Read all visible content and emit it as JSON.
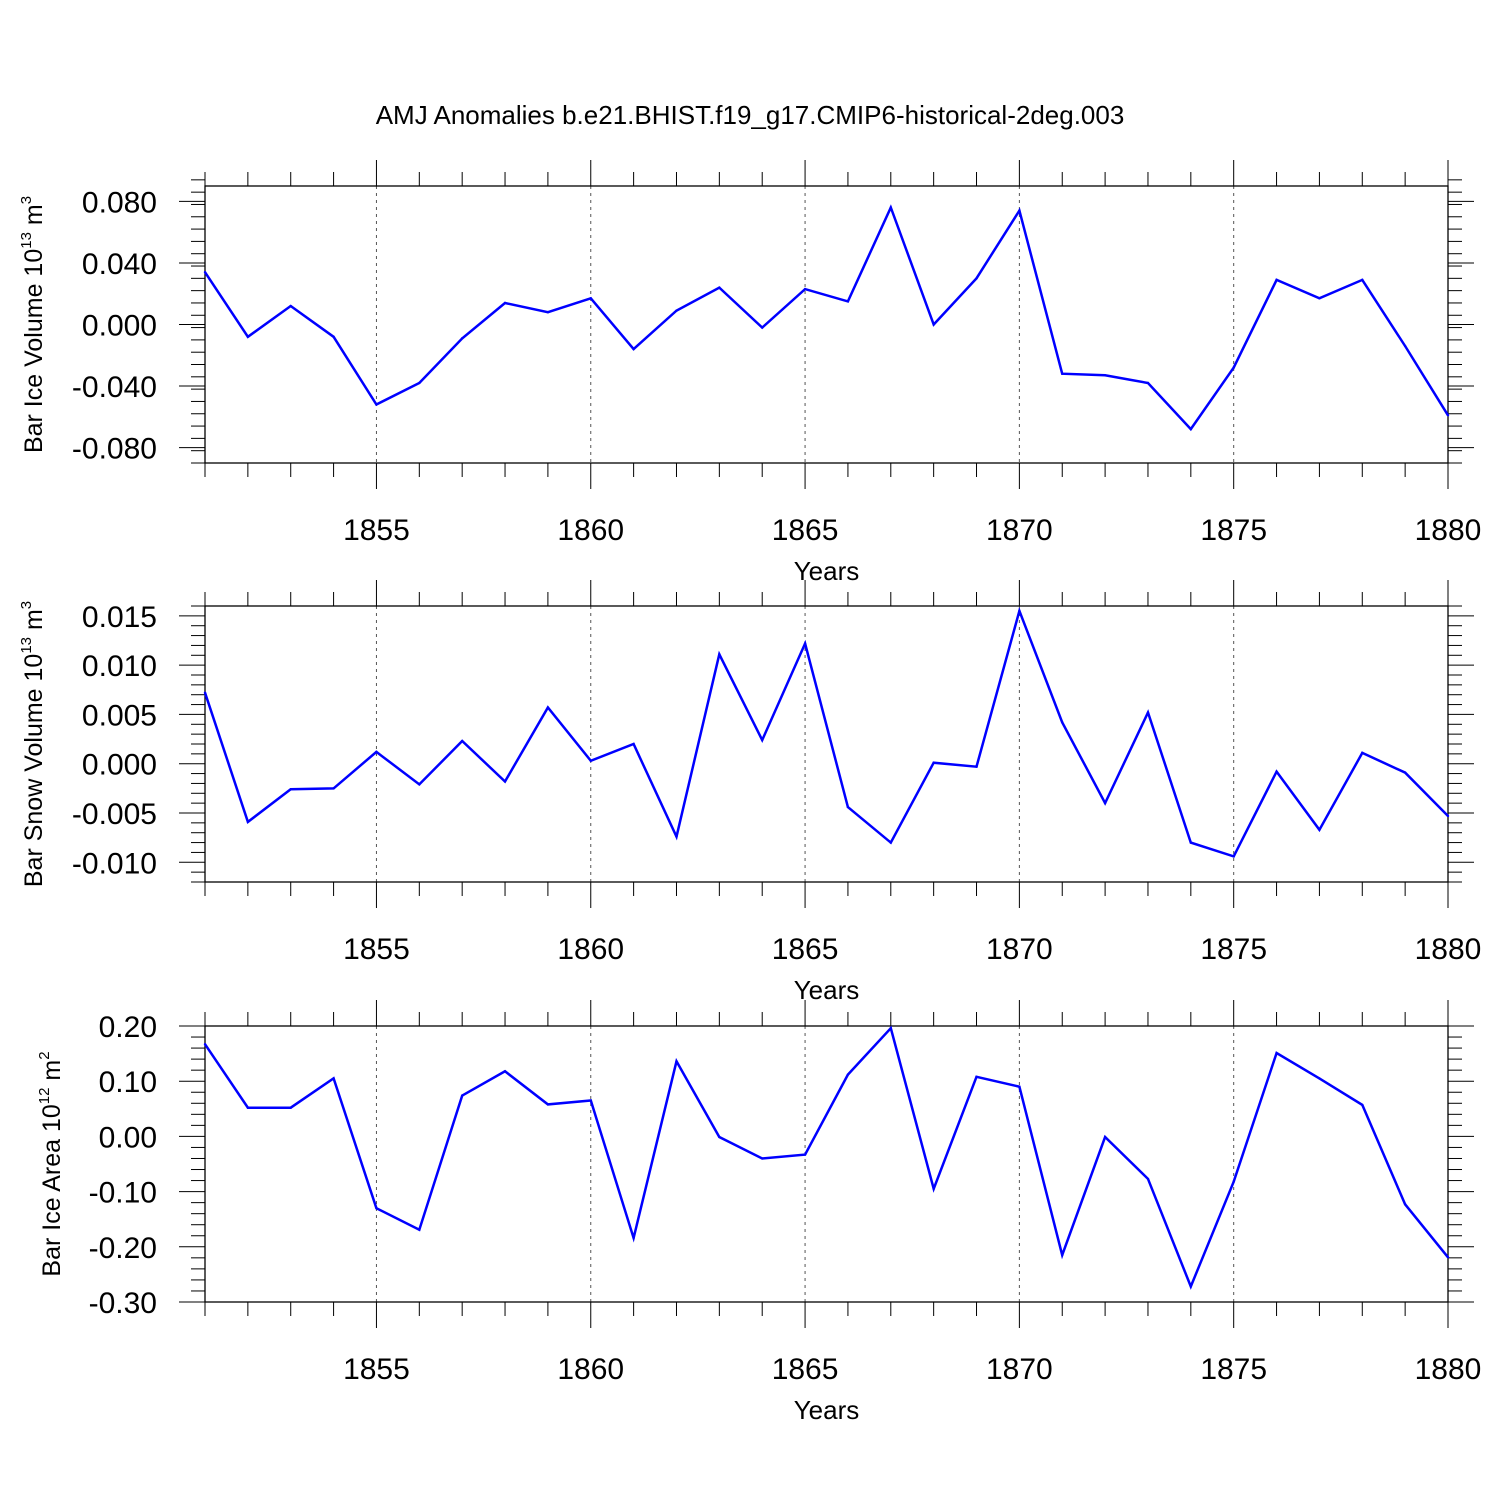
{
  "title": "AMJ Anomalies b.e21.BHIST.f19_g17.CMIP6-historical-2deg.003",
  "line_color": "#0000ff",
  "chart_data": [
    {
      "type": "line",
      "ylabel": "Bar Ice Volume 10",
      "ylabel_exp": "13",
      "ylabel_unit": " m",
      "ylabel_unit_exp": "3",
      "xlabel": "Years",
      "xlim": [
        1851,
        1880
      ],
      "ylim": [
        -0.09,
        0.09
      ],
      "xticks": [
        1855,
        1860,
        1865,
        1870,
        1875,
        1880
      ],
      "xtick_labels": [
        "1855",
        "1860",
        "1865",
        "1870",
        "1875",
        "1880"
      ],
      "yticks": [
        0.08,
        0.04,
        0.0,
        -0.04,
        -0.08
      ],
      "ytick_labels": [
        "0.080",
        "0.040",
        "0.000",
        "-0.040",
        "-0.080"
      ],
      "x": [
        1851,
        1852,
        1853,
        1854,
        1855,
        1856,
        1857,
        1858,
        1859,
        1860,
        1861,
        1862,
        1863,
        1864,
        1865,
        1866,
        1867,
        1868,
        1869,
        1870,
        1871,
        1872,
        1873,
        1874,
        1875,
        1876,
        1877,
        1878,
        1879,
        1880
      ],
      "values": [
        0.034,
        -0.008,
        0.012,
        -0.008,
        -0.052,
        -0.038,
        -0.009,
        0.014,
        0.008,
        0.017,
        -0.016,
        0.009,
        0.024,
        -0.002,
        0.023,
        0.015,
        0.076,
        0.0,
        0.03,
        0.074,
        -0.032,
        -0.033,
        -0.038,
        -0.068,
        -0.028,
        0.029,
        0.017,
        0.029,
        -0.014,
        -0.059
      ]
    },
    {
      "type": "line",
      "ylabel": "Bar Snow Volume 10",
      "ylabel_exp": "13",
      "ylabel_unit": " m",
      "ylabel_unit_exp": "3",
      "xlabel": "Years",
      "xlim": [
        1851,
        1880
      ],
      "ylim": [
        -0.012,
        0.016
      ],
      "xticks": [
        1855,
        1860,
        1865,
        1870,
        1875,
        1880
      ],
      "xtick_labels": [
        "1855",
        "1860",
        "1865",
        "1870",
        "1875",
        "1880"
      ],
      "yticks": [
        0.015,
        0.01,
        0.005,
        0.0,
        -0.005,
        -0.01
      ],
      "ytick_labels": [
        "0.015",
        "0.010",
        "0.005",
        "0.000",
        "-0.005",
        "-0.010"
      ],
      "x": [
        1851,
        1852,
        1853,
        1854,
        1855,
        1856,
        1857,
        1858,
        1859,
        1860,
        1861,
        1862,
        1863,
        1864,
        1865,
        1866,
        1867,
        1868,
        1869,
        1870,
        1871,
        1872,
        1873,
        1874,
        1875,
        1876,
        1877,
        1878,
        1879,
        1880
      ],
      "values": [
        0.0072,
        -0.0059,
        -0.0026,
        -0.0025,
        0.0012,
        -0.0021,
        0.0023,
        -0.0018,
        0.0057,
        0.0003,
        0.002,
        -0.0074,
        0.0111,
        0.0024,
        0.0122,
        -0.0044,
        -0.008,
        0.0001,
        -0.0003,
        0.0155,
        0.0042,
        -0.004,
        0.0052,
        -0.008,
        -0.0094,
        -0.0008,
        -0.0067,
        0.0011,
        -0.0009,
        -0.0053
      ]
    },
    {
      "type": "line",
      "ylabel": "Bar Ice Area 10",
      "ylabel_exp": "12",
      "ylabel_unit": " m",
      "ylabel_unit_exp": "2",
      "xlabel": "Years",
      "xlim": [
        1851,
        1880
      ],
      "ylim": [
        -0.3,
        0.2
      ],
      "xticks": [
        1855,
        1860,
        1865,
        1870,
        1875,
        1880
      ],
      "xtick_labels": [
        "1855",
        "1860",
        "1865",
        "1870",
        "1875",
        "1880"
      ],
      "yticks": [
        0.2,
        0.1,
        0.0,
        -0.1,
        -0.2,
        -0.3
      ],
      "ytick_labels": [
        "0.20",
        "0.10",
        "0.00",
        "-0.10",
        "-0.20",
        "-0.30"
      ],
      "x": [
        1851,
        1852,
        1853,
        1854,
        1855,
        1856,
        1857,
        1858,
        1859,
        1860,
        1861,
        1862,
        1863,
        1864,
        1865,
        1866,
        1867,
        1868,
        1869,
        1870,
        1871,
        1872,
        1873,
        1874,
        1875,
        1876,
        1877,
        1878,
        1879,
        1880
      ],
      "values": [
        0.167,
        0.052,
        0.052,
        0.105,
        -0.13,
        -0.169,
        0.074,
        0.118,
        0.058,
        0.065,
        -0.184,
        0.136,
        -0.001,
        -0.04,
        -0.033,
        0.112,
        0.196,
        -0.095,
        0.108,
        0.09,
        -0.215,
        -0.001,
        -0.077,
        -0.272,
        -0.082,
        0.151,
        0.105,
        0.057,
        -0.123,
        -0.219
      ]
    }
  ]
}
